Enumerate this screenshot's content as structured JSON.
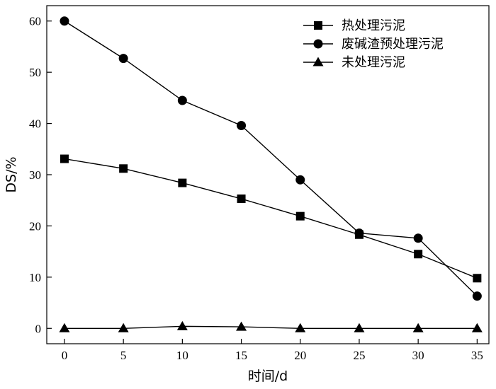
{
  "chart_data": {
    "type": "line",
    "title": "",
    "xlabel": "时间/d",
    "ylabel": "DS/%",
    "xlim": [
      -1.5,
      36
    ],
    "ylim": [
      -3,
      63
    ],
    "xticks": [
      0,
      5,
      10,
      15,
      20,
      25,
      30,
      35
    ],
    "yticks": [
      0,
      10,
      20,
      30,
      40,
      50,
      60
    ],
    "x": [
      0,
      5,
      10,
      15,
      20,
      25,
      30,
      35
    ],
    "legend_position": "top-right",
    "grid": false,
    "series": [
      {
        "name": "热处理污泥",
        "marker": "square",
        "color": "#000000",
        "values": [
          33.1,
          31.2,
          28.4,
          25.3,
          21.9,
          18.3,
          14.5,
          9.8
        ]
      },
      {
        "name": "废碱渣预处理污泥",
        "marker": "circle",
        "color": "#000000",
        "values": [
          60.0,
          52.7,
          44.5,
          39.6,
          29.0,
          18.6,
          17.6,
          6.3
        ]
      },
      {
        "name": "未处理污泥",
        "marker": "triangle",
        "color": "#000000",
        "values": [
          0.0,
          0.0,
          0.4,
          0.3,
          0.0,
          0.0,
          0.0,
          0.0
        ]
      }
    ]
  }
}
